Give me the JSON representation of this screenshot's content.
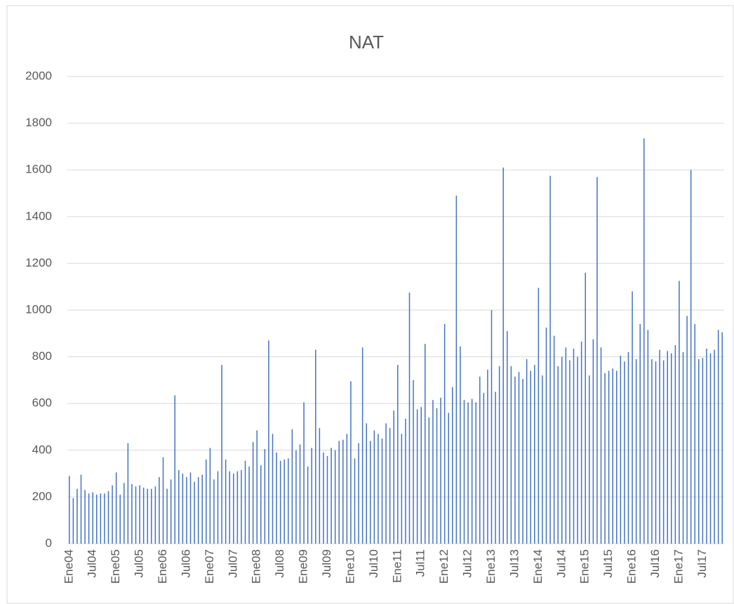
{
  "chart_data": {
    "type": "bar",
    "title": "NAT",
    "color": "#4472c4",
    "grid": true,
    "ylim": [
      0,
      2000
    ],
    "yticks": [
      0,
      200,
      400,
      600,
      800,
      1000,
      1200,
      1400,
      1600,
      1800,
      2000
    ],
    "categories": [
      "Ene04",
      null,
      null,
      null,
      null,
      null,
      "Jul04",
      null,
      null,
      null,
      null,
      null,
      "Ene05",
      null,
      null,
      null,
      null,
      null,
      "Jul05",
      null,
      null,
      null,
      null,
      null,
      "Ene06",
      null,
      null,
      null,
      null,
      null,
      "Jul06",
      null,
      null,
      null,
      null,
      null,
      "Ene07",
      null,
      null,
      null,
      null,
      null,
      "Jul07",
      null,
      null,
      null,
      null,
      null,
      "Ene08",
      null,
      null,
      null,
      null,
      null,
      "Jul08",
      null,
      null,
      null,
      null,
      null,
      "Ene09",
      null,
      null,
      null,
      null,
      null,
      "Jul09",
      null,
      null,
      null,
      null,
      null,
      "Ene10",
      null,
      null,
      null,
      null,
      null,
      "Jul10",
      null,
      null,
      null,
      null,
      null,
      "Ene11",
      null,
      null,
      null,
      null,
      null,
      "Jul11",
      null,
      null,
      null,
      null,
      null,
      "Ene12",
      null,
      null,
      null,
      null,
      null,
      "Jul12",
      null,
      null,
      null,
      null,
      null,
      "Ene13",
      null,
      null,
      null,
      null,
      null,
      "Jul13",
      null,
      null,
      null,
      null,
      null,
      "Ene14",
      null,
      null,
      null,
      null,
      null,
      "Jul14",
      null,
      null,
      null,
      null,
      null,
      "Ene15",
      null,
      null,
      null,
      null,
      null,
      "Jul15",
      null,
      null,
      null,
      null,
      null,
      "Ene16",
      null,
      null,
      null,
      null,
      null,
      "Jul16",
      null,
      null,
      null,
      null,
      null,
      "Ene17",
      null,
      null,
      null,
      null,
      null,
      "Jul17",
      null,
      null,
      null,
      null,
      null
    ],
    "values": [
      290,
      195,
      235,
      295,
      230,
      215,
      220,
      210,
      215,
      215,
      225,
      250,
      305,
      210,
      260,
      430,
      255,
      245,
      250,
      240,
      235,
      235,
      245,
      285,
      370,
      235,
      275,
      635,
      315,
      300,
      285,
      305,
      265,
      285,
      295,
      360,
      410,
      275,
      310,
      765,
      360,
      310,
      300,
      310,
      315,
      355,
      330,
      435,
      485,
      335,
      405,
      870,
      470,
      390,
      355,
      360,
      365,
      490,
      400,
      425,
      605,
      330,
      410,
      830,
      495,
      390,
      375,
      410,
      400,
      440,
      445,
      470,
      695,
      365,
      430,
      840,
      515,
      440,
      485,
      470,
      450,
      515,
      495,
      570,
      765,
      470,
      535,
      1075,
      700,
      575,
      585,
      855,
      540,
      615,
      580,
      625,
      940,
      560,
      670,
      1490,
      845,
      615,
      605,
      620,
      605,
      715,
      645,
      745,
      1000,
      650,
      760,
      1610,
      910,
      760,
      715,
      735,
      705,
      790,
      740,
      765,
      1095,
      720,
      925,
      1575,
      890,
      760,
      800,
      840,
      785,
      835,
      800,
      865,
      1160,
      720,
      875,
      1570,
      840,
      730,
      740,
      750,
      740,
      805,
      780,
      820,
      1080,
      790,
      940,
      1735,
      915,
      790,
      780,
      830,
      785,
      825,
      815,
      850,
      1125,
      820,
      975,
      1600,
      940,
      790,
      795,
      835,
      815,
      830,
      915,
      905
    ]
  }
}
